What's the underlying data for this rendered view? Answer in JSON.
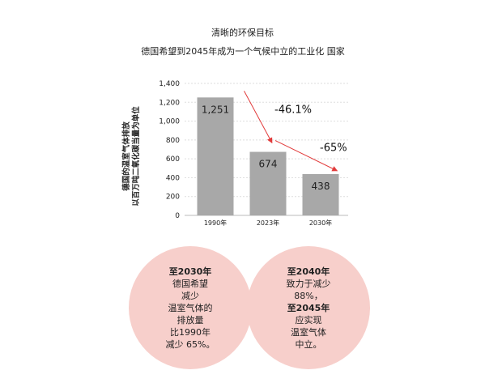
{
  "title": "清晰的环保目标",
  "subtitle": "德国希望到2045年成为一个气候中立的工业化 国家",
  "chart_data": {
    "type": "bar",
    "ylabel_lines": [
      "德国的温室气体排放",
      "以百万吨二氧化碳当量为单位"
    ],
    "categories": [
      "1990年",
      "2023年",
      "2030年"
    ],
    "values": [
      1251,
      674,
      438
    ],
    "value_labels": [
      "1,251",
      "674",
      "438"
    ],
    "yticks": [
      0,
      200,
      400,
      600,
      800,
      1000,
      1200,
      1400
    ],
    "ytick_labels": [
      "0",
      "200",
      "400",
      "600",
      "800",
      "1,000",
      "1,200",
      "1,400"
    ],
    "ylim": [
      0,
      1400
    ],
    "grid": true,
    "annotations": [
      "-46.1%",
      "-65%"
    ],
    "colors": {
      "bar": "#a8a8a8",
      "arrow": "#e23b3b",
      "grid": "#dddddd"
    }
  },
  "circles": {
    "left": [
      "至2030年",
      "德国希望",
      "减少",
      "温室气体的",
      "排放量",
      "比1990年",
      "减少 65%。"
    ],
    "right": [
      "至2040年",
      "致力于减少",
      "88%，",
      "至2045年",
      "应实现",
      "温室气体",
      "中立。"
    ]
  },
  "circle_color": "#f7cfcb"
}
